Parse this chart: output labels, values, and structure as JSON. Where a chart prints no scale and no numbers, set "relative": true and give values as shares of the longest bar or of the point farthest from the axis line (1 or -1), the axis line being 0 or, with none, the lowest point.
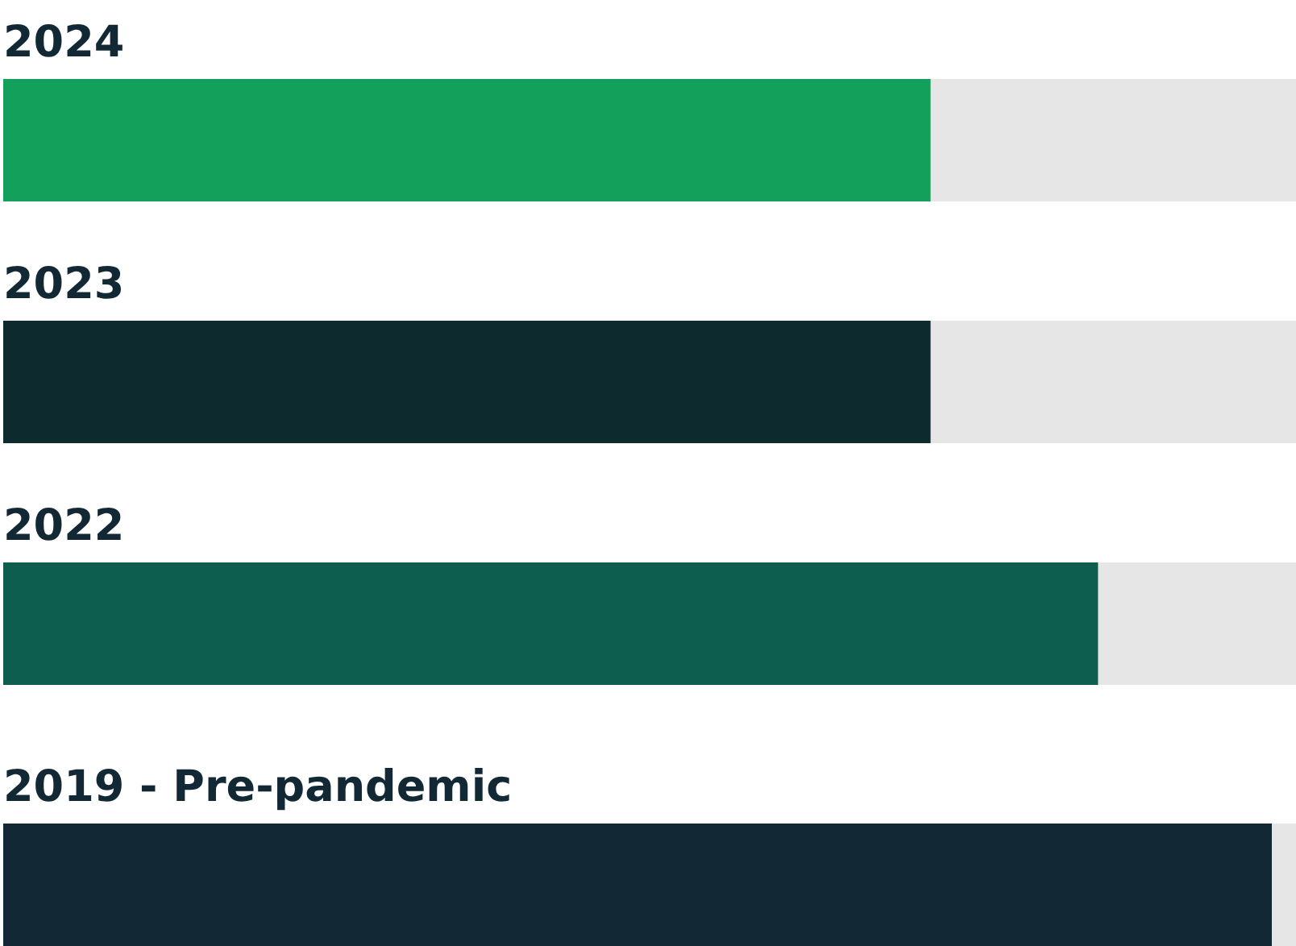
{
  "chart_data": {
    "type": "bar",
    "orientation": "horizontal",
    "relative": true,
    "categories": [
      "2024",
      "2023",
      "2022",
      "2019 - Pre-pandemic"
    ],
    "values": [
      0.731,
      0.731,
      0.863,
      1
    ],
    "colors": [
      "#13a05a",
      "#0d2b2e",
      "#0d5e4e",
      "#132835"
    ]
  }
}
